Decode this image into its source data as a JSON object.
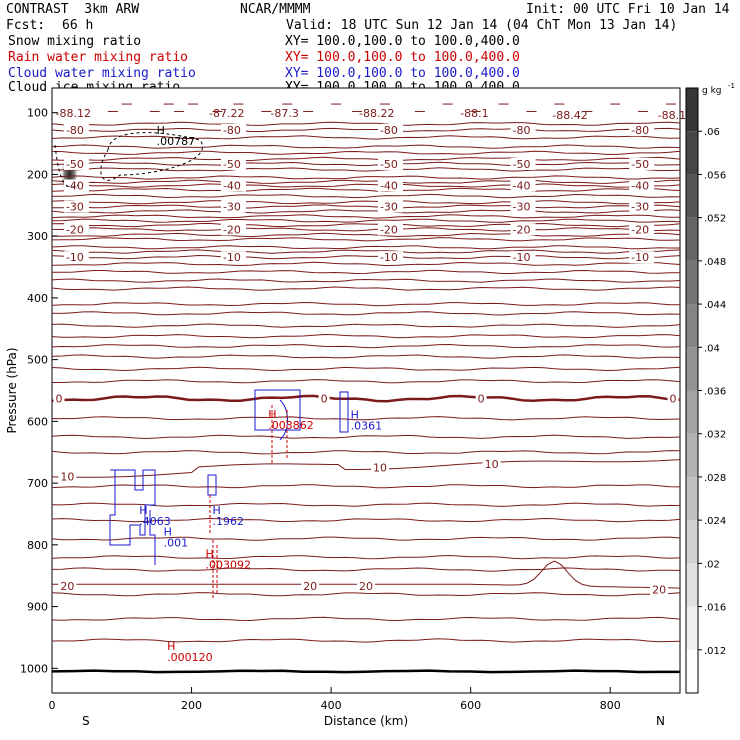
{
  "header": {
    "model": "CONTRAST  3km ARW",
    "org": "NCAR/MMMM",
    "init": "Init: 00 UTC Fri 10 Jan 14",
    "fcst_label": "Fcst:",
    "fcst_value": "66 h",
    "valid": "Valid: 18 UTC Sun 12 Jan 14 (04 ChT Mon 13 Jan 14)"
  },
  "legend": [
    {
      "label": "Snow mixing ratio",
      "xy": "XY= 100.0,100.0 to 100.0,400.0",
      "color": "#000000"
    },
    {
      "label": "Rain water mixing ratio",
      "xy": "XY= 100.0,100.0 to 100.0,400.0",
      "color": "#cc0000"
    },
    {
      "label": "Cloud water mixing ratio",
      "xy": "XY= 100.0,100.0 to 100.0,400.0",
      "color": "#1a1acc"
    },
    {
      "label": "Cloud ice mixing ratio",
      "xy": "XY= 100.0,100.0 to 100.0,400.0",
      "color": "#000000"
    }
  ],
  "chart_data": {
    "type": "cross-section",
    "xlabel": "Distance (km)",
    "ylabel": "Pressure (hPa)",
    "xlim": [
      0,
      900
    ],
    "ylim": [
      1040,
      60
    ],
    "x_ticks": [
      0,
      200,
      400,
      600,
      800
    ],
    "y_ticks": [
      100,
      200,
      300,
      400,
      500,
      600,
      700,
      800,
      900,
      1000
    ],
    "end_labels": {
      "left": "S",
      "right": "N"
    },
    "temperature_contours": [
      {
        "label": "-80",
        "p": 128
      },
      {
        "label": "-50",
        "p": 183
      },
      {
        "label": "-40",
        "p": 218
      },
      {
        "label": "-30",
        "p": 252
      },
      {
        "label": "-20",
        "p": 289
      },
      {
        "label": "-10",
        "p": 334
      },
      {
        "label": "0",
        "p": 563
      },
      {
        "label": "10",
        "p": 664
      },
      {
        "label": "20",
        "p": 864
      }
    ],
    "minimum_labels": [
      {
        "value": "-88.12",
        "x": 5,
        "p": 107
      },
      {
        "value": "-87.22",
        "x": 225,
        "p": 107
      },
      {
        "value": "-87.3",
        "x": 313,
        "p": 107
      },
      {
        "value": "-88.22",
        "x": 440,
        "p": 107
      },
      {
        "value": "-88.1",
        "x": 585,
        "p": 107
      },
      {
        "value": "-88.42",
        "x": 717,
        "p": 110
      },
      {
        "value": "-88.1",
        "x": 868,
        "p": 110
      }
    ],
    "maxima": [
      {
        "value": ".00787",
        "x": 150,
        "p": 152,
        "field": "cloud_ice"
      },
      {
        "value": ".003862",
        "x": 310,
        "p": 612,
        "field": "rain"
      },
      {
        "value": ".0361",
        "x": 428,
        "p": 613,
        "field": "cloud_water"
      },
      {
        "value": ".4063",
        "x": 125,
        "p": 768,
        "field": "cloud_water"
      },
      {
        "value": ".1962",
        "x": 230,
        "p": 768,
        "field": "cloud_water"
      },
      {
        "value": ".001",
        "x": 160,
        "p": 803,
        "field": "cloud_water"
      },
      {
        "value": ".003092",
        "x": 220,
        "p": 838,
        "field": "rain"
      },
      {
        "value": ".000120",
        "x": 165,
        "p": 988,
        "field": "rain"
      }
    ],
    "colorbar": {
      "unit": "g kg",
      "unit_exp": "-1",
      "ticks": [
        ".012",
        ".016",
        ".02",
        ".024",
        ".028",
        ".032",
        ".036",
        ".04",
        ".044",
        ".048",
        ".052",
        ".056",
        ".06"
      ],
      "max": 0.064,
      "min": 0.008
    }
  }
}
